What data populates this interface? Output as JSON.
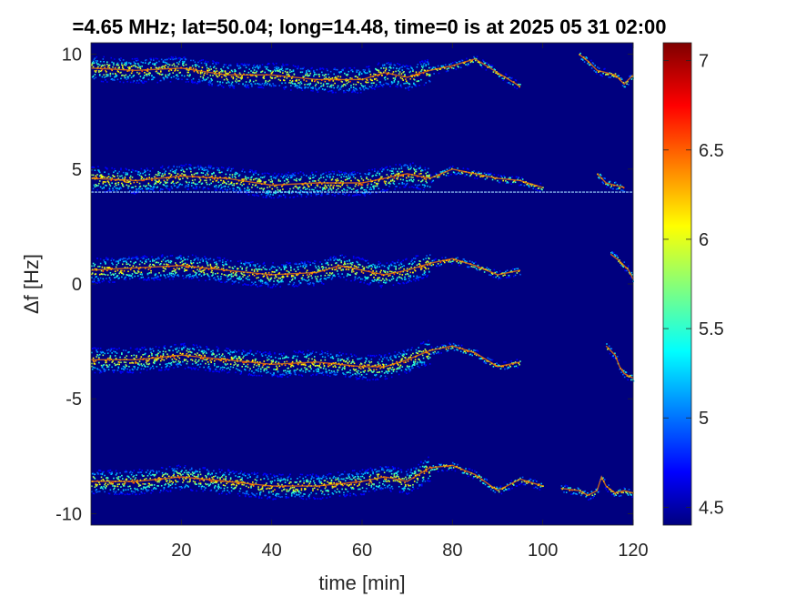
{
  "chart_data": {
    "type": "heatmap",
    "title": "=4.65 MHz;  lat=50.04; long=14.48, time=0 is at 2025 05 31 02:00",
    "xlabel": "time [min]",
    "ylabel": "Δf [Hz]",
    "xlim": [
      0,
      120
    ],
    "ylim": [
      -10.5,
      10.5
    ],
    "x_ticks": [
      20,
      40,
      60,
      80,
      100,
      120
    ],
    "x_tick_labels": [
      "20",
      "40",
      "60",
      "80",
      "100",
      "120"
    ],
    "y_ticks": [
      10,
      5,
      0,
      -5,
      -10
    ],
    "y_tick_labels": [
      "10",
      "5",
      "0",
      "-5",
      "-10"
    ],
    "colorbar": {
      "range": [
        4.4,
        7.1
      ],
      "ticks": [
        7,
        6.5,
        6,
        5.5,
        5,
        4.5
      ],
      "tick_labels": [
        "7",
        "6.5",
        "6",
        "5.5",
        "5",
        "4.5"
      ],
      "colormap": "jet"
    },
    "background_color": "#00007f",
    "reference_line": {
      "y": 4.0,
      "color": "#9fd8ff"
    },
    "traces": [
      {
        "name": "",
        "points": [
          [
            0,
            9.4
          ],
          [
            10,
            9.3
          ],
          [
            20,
            9.4
          ],
          [
            30,
            9.1
          ],
          [
            40,
            9.1
          ],
          [
            50,
            8.9
          ],
          [
            60,
            8.9
          ],
          [
            65,
            9.2
          ],
          [
            70,
            9.0
          ],
          [
            75,
            9.3
          ],
          [
            80,
            9.5
          ],
          [
            85,
            9.8
          ],
          [
            90,
            9.2
          ],
          [
            95,
            8.6
          ]
        ]
      },
      {
        "name": "",
        "points": [
          [
            0,
            4.6
          ],
          [
            10,
            4.5
          ],
          [
            20,
            4.7
          ],
          [
            30,
            4.6
          ],
          [
            40,
            4.3
          ],
          [
            50,
            4.4
          ],
          [
            60,
            4.4
          ],
          [
            65,
            4.6
          ],
          [
            70,
            4.8
          ],
          [
            75,
            4.6
          ],
          [
            80,
            5.0
          ],
          [
            85,
            4.8
          ],
          [
            90,
            4.6
          ],
          [
            95,
            4.5
          ],
          [
            100,
            4.2
          ]
        ]
      },
      {
        "name": "",
        "points": [
          [
            0,
            0.6
          ],
          [
            10,
            0.7
          ],
          [
            20,
            0.8
          ],
          [
            30,
            0.6
          ],
          [
            40,
            0.4
          ],
          [
            50,
            0.5
          ],
          [
            55,
            0.8
          ],
          [
            60,
            0.6
          ],
          [
            65,
            0.4
          ],
          [
            70,
            0.6
          ],
          [
            75,
            0.9
          ],
          [
            80,
            1.1
          ],
          [
            85,
            0.8
          ],
          [
            90,
            0.4
          ],
          [
            95,
            0.6
          ]
        ]
      },
      {
        "name": "",
        "points": [
          [
            0,
            -3.3
          ],
          [
            10,
            -3.3
          ],
          [
            20,
            -3.1
          ],
          [
            30,
            -3.3
          ],
          [
            40,
            -3.5
          ],
          [
            50,
            -3.4
          ],
          [
            60,
            -3.6
          ],
          [
            65,
            -3.6
          ],
          [
            70,
            -3.3
          ],
          [
            75,
            -2.9
          ],
          [
            80,
            -2.7
          ],
          [
            85,
            -3.0
          ],
          [
            90,
            -3.6
          ],
          [
            95,
            -3.4
          ]
        ]
      },
      {
        "name": "",
        "points": [
          [
            0,
            -8.6
          ],
          [
            10,
            -8.6
          ],
          [
            20,
            -8.4
          ],
          [
            30,
            -8.6
          ],
          [
            40,
            -8.8
          ],
          [
            50,
            -8.8
          ],
          [
            60,
            -8.6
          ],
          [
            65,
            -8.4
          ],
          [
            70,
            -8.6
          ],
          [
            75,
            -8.0
          ],
          [
            80,
            -7.9
          ],
          [
            85,
            -8.3
          ],
          [
            90,
            -9.0
          ],
          [
            95,
            -8.5
          ],
          [
            100,
            -8.8
          ]
        ]
      },
      {
        "name": "",
        "points": [
          [
            108,
            10.0
          ],
          [
            110,
            9.7
          ],
          [
            112,
            9.3
          ],
          [
            114,
            9.2
          ],
          [
            116,
            9.1
          ],
          [
            118,
            8.7
          ],
          [
            120,
            9.1
          ]
        ]
      },
      {
        "name": "",
        "points": [
          [
            112,
            4.8
          ],
          [
            114,
            4.4
          ],
          [
            116,
            4.3
          ],
          [
            118,
            4.2
          ]
        ]
      },
      {
        "name": "",
        "points": [
          [
            115,
            1.3
          ],
          [
            117,
            1.0
          ],
          [
            119,
            0.6
          ],
          [
            120,
            0.2
          ]
        ]
      },
      {
        "name": "",
        "points": [
          [
            114,
            -2.7
          ],
          [
            116,
            -3.1
          ],
          [
            117,
            -3.6
          ],
          [
            118,
            -3.9
          ],
          [
            120,
            -4.1
          ]
        ]
      },
      {
        "name": "",
        "points": [
          [
            104,
            -8.9
          ],
          [
            108,
            -9.0
          ],
          [
            110,
            -9.2
          ],
          [
            112,
            -9.0
          ],
          [
            113,
            -8.4
          ],
          [
            114,
            -8.8
          ],
          [
            116,
            -9.1
          ],
          [
            118,
            -9.0
          ],
          [
            120,
            -9.1
          ]
        ]
      }
    ]
  }
}
